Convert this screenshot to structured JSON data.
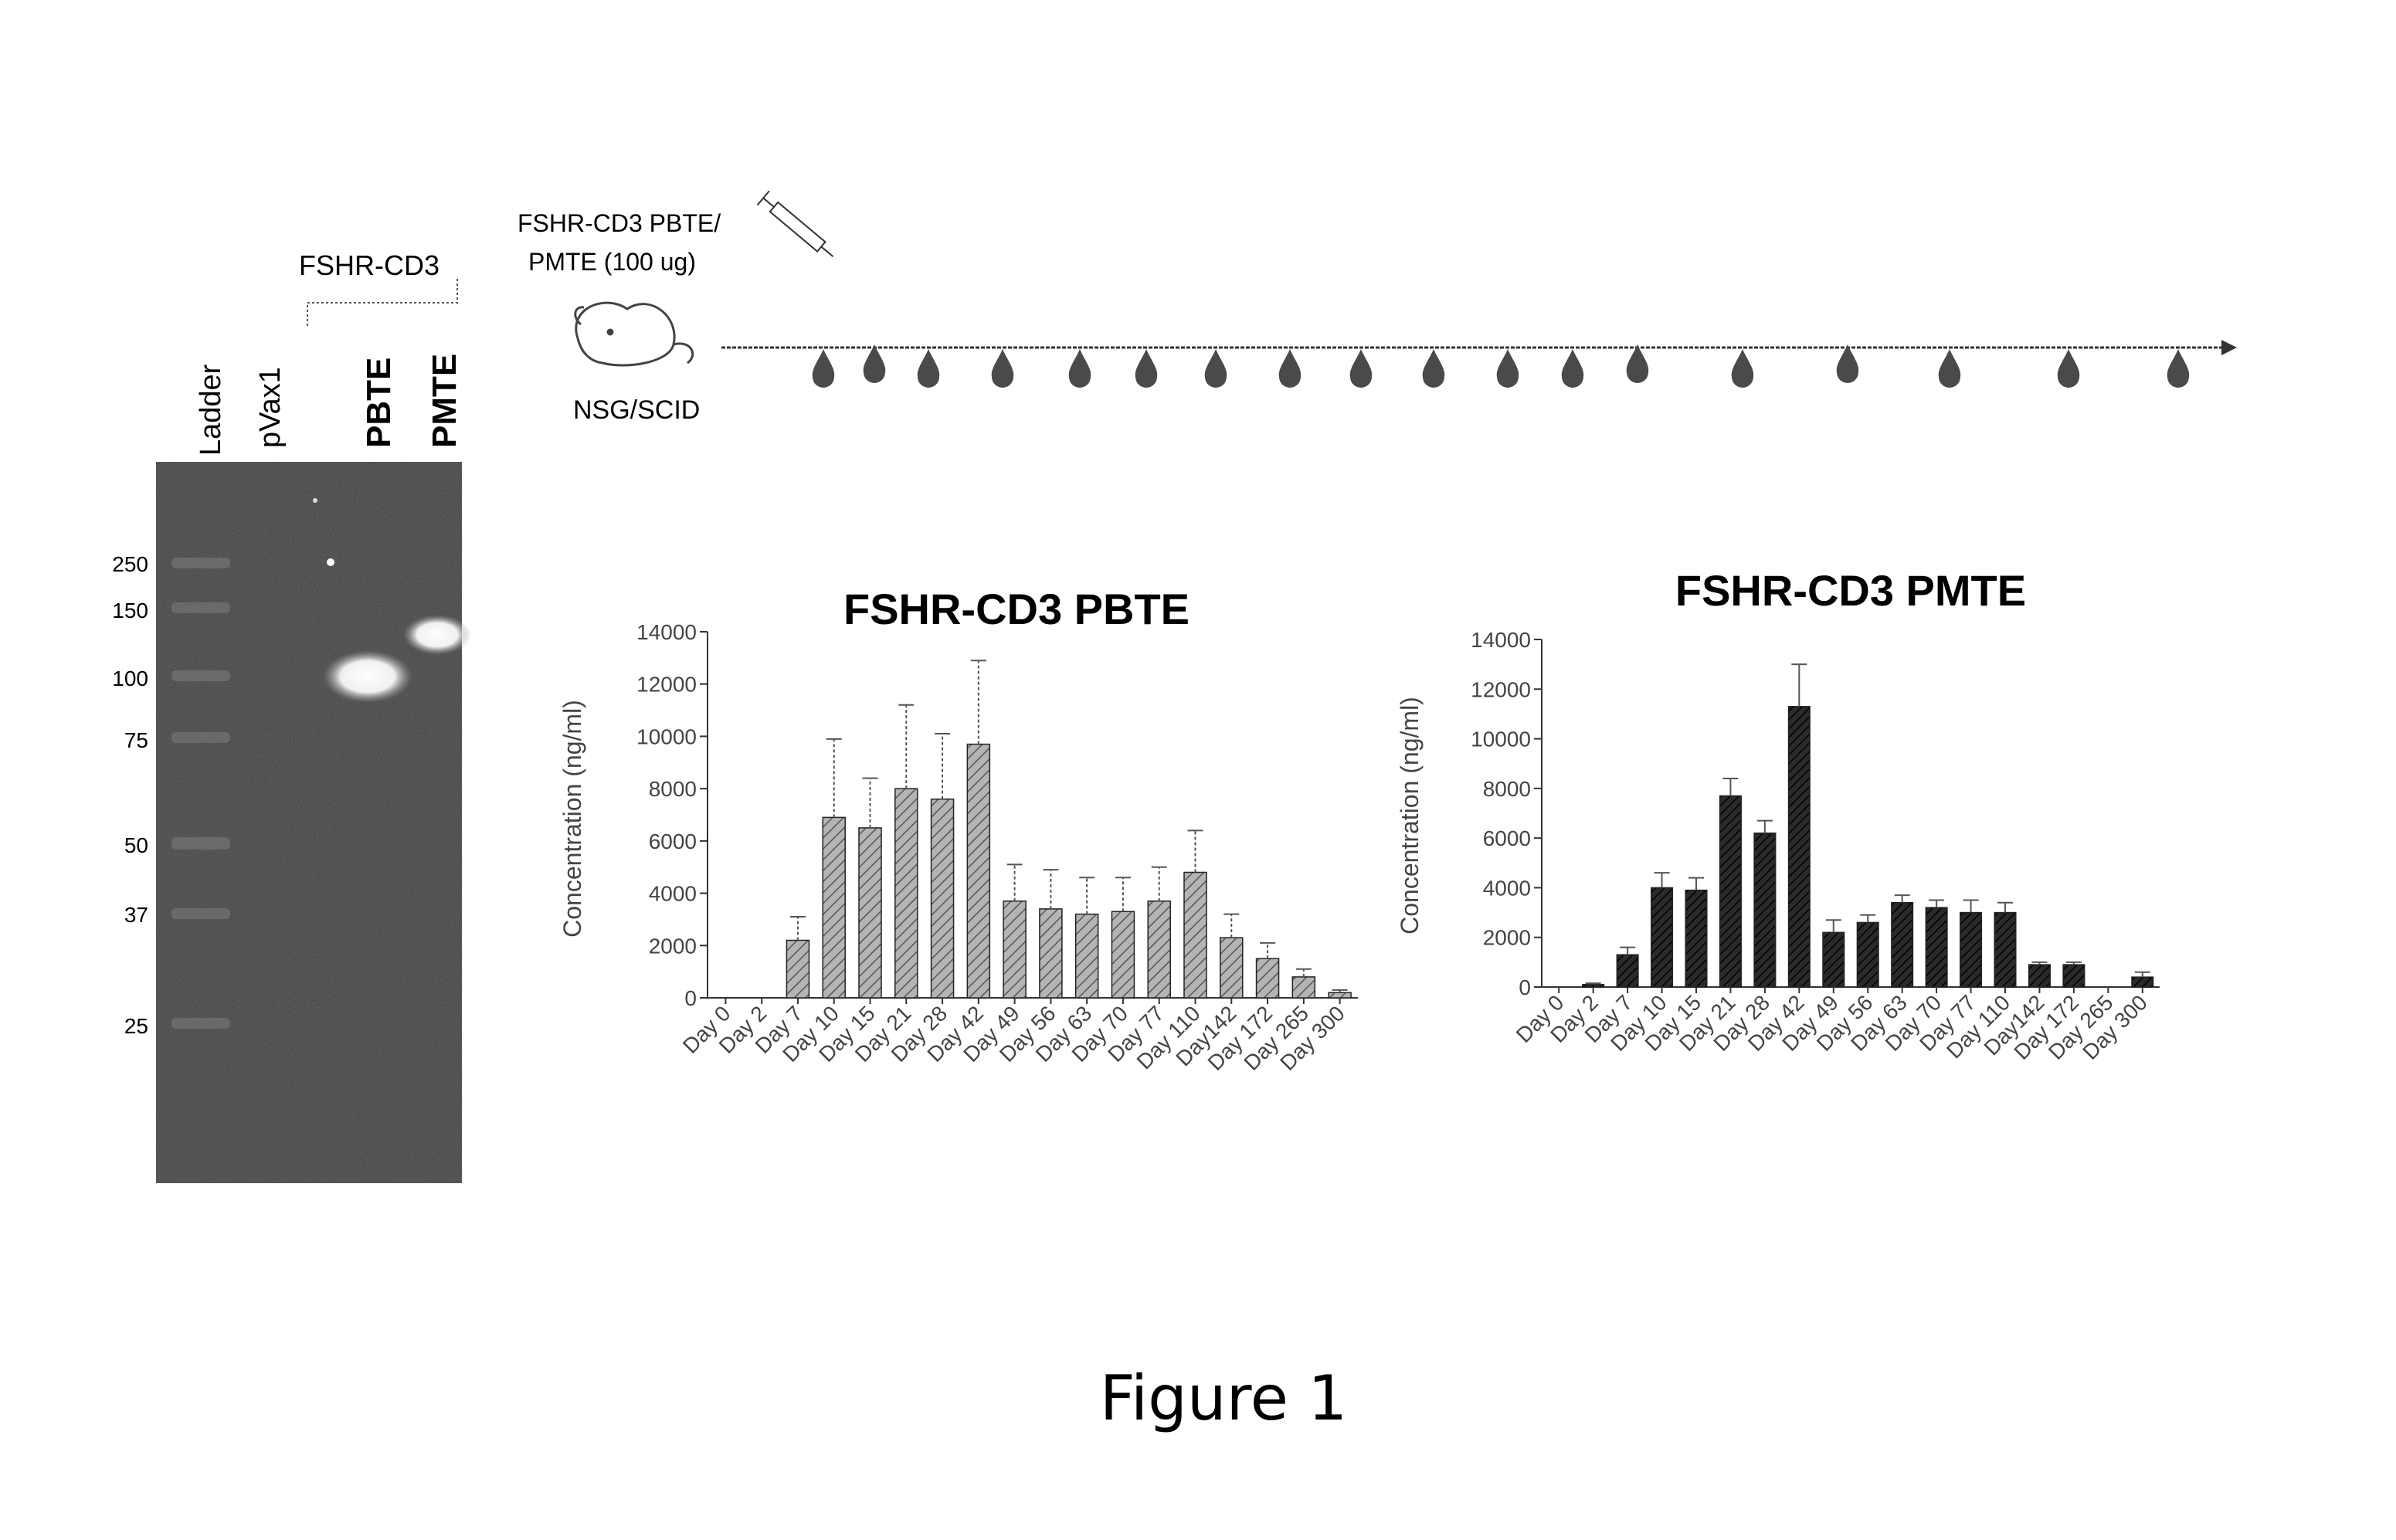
{
  "figure_caption": "Figure 1",
  "gel": {
    "lane_labels": [
      "Ladder",
      "pVax1",
      "PBTE",
      "PMTE"
    ],
    "group_label": "FSHR-CD3",
    "marker_labels": [
      "250",
      "150",
      "100",
      "75",
      "50",
      "37",
      "25"
    ]
  },
  "timeline": {
    "injection_label_line1": "FSHR-CD3 PBTE/",
    "injection_label_line2": "PMTE (100 ug)",
    "model_label": "NSG/SCID",
    "bleed_count": 18
  },
  "chart_data": [
    {
      "type": "bar",
      "title": "FSHR-CD3 PBTE",
      "xlabel": "",
      "ylabel": "Concentration (ng/ml)",
      "ylim": [
        0,
        14000
      ],
      "yticks": [
        0,
        2000,
        4000,
        6000,
        8000,
        10000,
        12000,
        14000
      ],
      "categories": [
        "Day 0",
        "Day 2",
        "Day 7",
        "Day 10",
        "Day 15",
        "Day 21",
        "Day 28",
        "Day 42",
        "Day 49",
        "Day 56",
        "Day 63",
        "Day 70",
        "Day 77",
        "Day 110",
        "Day142",
        "Day 172",
        "Day 265",
        "Day 300"
      ],
      "values": [
        0,
        0,
        2200,
        6900,
        6500,
        8000,
        7600,
        9700,
        3700,
        3400,
        3200,
        3300,
        3700,
        4800,
        2300,
        1500,
        800,
        200
      ],
      "errors": [
        0,
        0,
        900,
        3000,
        1900,
        3200,
        2500,
        3200,
        1400,
        1500,
        1400,
        1300,
        1300,
        1600,
        900,
        600,
        300,
        100
      ],
      "bar_color": "#9a9a9a",
      "hatched": true
    },
    {
      "type": "bar",
      "title": "FSHR-CD3 PMTE",
      "xlabel": "",
      "ylabel": "Concentration (ng/ml)",
      "ylim": [
        0,
        14000
      ],
      "yticks": [
        0,
        2000,
        4000,
        6000,
        8000,
        10000,
        12000,
        14000
      ],
      "categories": [
        "Day 0",
        "Day 2",
        "Day 7",
        "Day 10",
        "Day 15",
        "Day 21",
        "Day 28",
        "Day 42",
        "Day 49",
        "Day 56",
        "Day 63",
        "Day 70",
        "Day 77",
        "Day 110",
        "Day142",
        "Day 172",
        "Day 265",
        "Day 300"
      ],
      "values": [
        0,
        100,
        1300,
        4000,
        3900,
        7700,
        6200,
        11300,
        2200,
        2600,
        3400,
        3200,
        3000,
        3000,
        900,
        900,
        0,
        400
      ],
      "errors": [
        0,
        50,
        300,
        600,
        500,
        700,
        500,
        1700,
        500,
        300,
        300,
        300,
        500,
        400,
        100,
        100,
        0,
        200
      ],
      "bar_color": "#2c2c2c",
      "hatched": false
    }
  ]
}
